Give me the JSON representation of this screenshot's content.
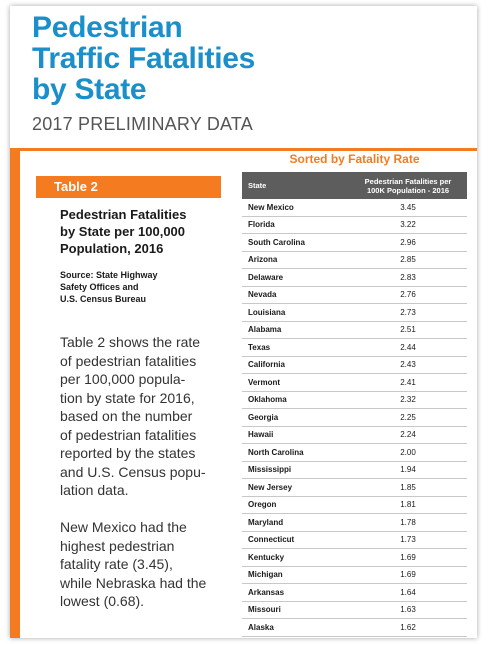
{
  "header": {
    "title_lines": [
      "Pedestrian",
      "Traffic Fatalities",
      "by State"
    ],
    "subtitle": "2017 PRELIMINARY DATA"
  },
  "left": {
    "badge": "Table 2",
    "heading_lines": [
      "Pedestrian Fatalities",
      "by State per 100,000",
      "Population, 2016"
    ],
    "source_lines": [
      "Source: State Highway",
      "Safety Offices and",
      "U.S. Census Bureau"
    ],
    "paragraph1_lines": [
      "Table 2 shows the rate",
      "of pedestrian fatalities",
      "per 100,000 popula-",
      "tion by state for 2016,",
      "based on the number",
      "of pedestrian fatalities",
      "reported by the states",
      "and U.S. Census popu-",
      "lation data."
    ],
    "paragraph2_lines": [
      "New Mexico had the",
      "highest pedestrian",
      "fatality rate (3.45),",
      "while Nebraska had the",
      "lowest (0.68)."
    ]
  },
  "table": {
    "sorted_label": "Sorted by Fatality Rate",
    "col_state": "State",
    "col_rate_lines": [
      "Pedestrian Fatalities per",
      "100K Population - 2016"
    ],
    "rows": [
      {
        "state": "New Mexico",
        "rate": "3.45"
      },
      {
        "state": "Florida",
        "rate": "3.22"
      },
      {
        "state": "South Carolina",
        "rate": "2.96"
      },
      {
        "state": "Arizona",
        "rate": "2.85"
      },
      {
        "state": "Delaware",
        "rate": "2.83"
      },
      {
        "state": "Nevada",
        "rate": "2.76"
      },
      {
        "state": "Louisiana",
        "rate": "2.73"
      },
      {
        "state": "Alabama",
        "rate": "2.51"
      },
      {
        "state": "Texas",
        "rate": "2.44"
      },
      {
        "state": "California",
        "rate": "2.43"
      },
      {
        "state": "Vermont",
        "rate": "2.41"
      },
      {
        "state": "Oklahoma",
        "rate": "2.32"
      },
      {
        "state": "Georgia",
        "rate": "2.25"
      },
      {
        "state": "Hawaii",
        "rate": "2.24"
      },
      {
        "state": "North Carolina",
        "rate": "2.00"
      },
      {
        "state": "Mississippi",
        "rate": "1.94"
      },
      {
        "state": "New Jersey",
        "rate": "1.85"
      },
      {
        "state": "Oregon",
        "rate": "1.81"
      },
      {
        "state": "Maryland",
        "rate": "1.78"
      },
      {
        "state": "Connecticut",
        "rate": "1.73"
      },
      {
        "state": "Kentucky",
        "rate": "1.69"
      },
      {
        "state": "Michigan",
        "rate": "1.69"
      },
      {
        "state": "Arkansas",
        "rate": "1.64"
      },
      {
        "state": "Missouri",
        "rate": "1.63"
      },
      {
        "state": "Alaska",
        "rate": "1.62"
      }
    ]
  },
  "colors": {
    "title_blue": "#1a8fc9",
    "accent_orange": "#f47b20",
    "header_gray": "#5d5d5d"
  }
}
